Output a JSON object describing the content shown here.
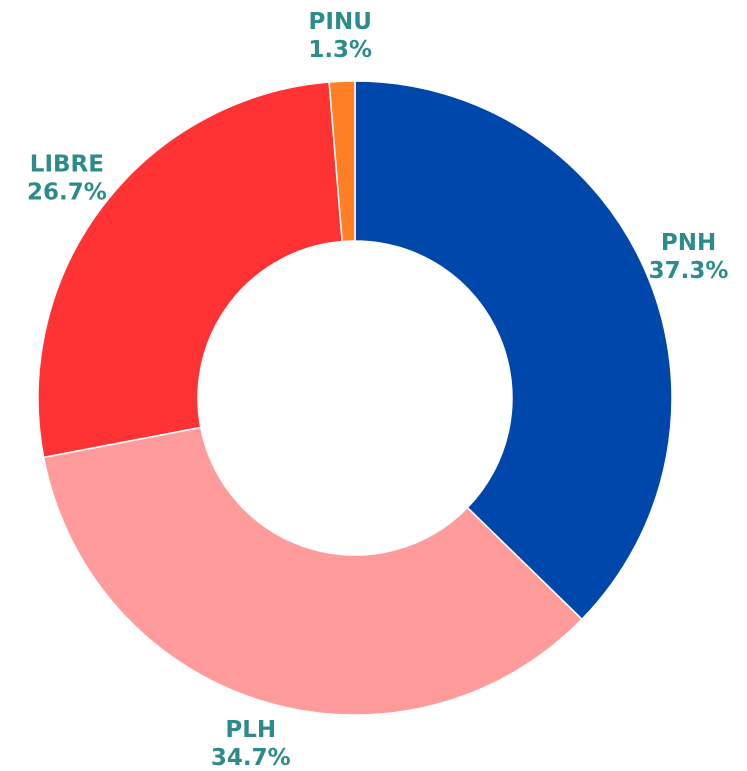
{
  "chart_data": {
    "type": "donut",
    "categories": [
      "PNH",
      "PLH",
      "LIBRE",
      "PINU"
    ],
    "values": [
      37.3,
      34.7,
      26.7,
      1.3
    ],
    "value_labels": [
      "37.3%",
      "34.7%",
      "26.7%",
      "1.3%"
    ],
    "colors": [
      "#0047ab",
      "#ff9b9b",
      "#ff3333",
      "#ff7f27"
    ],
    "label_color": "#2e8b8b"
  }
}
